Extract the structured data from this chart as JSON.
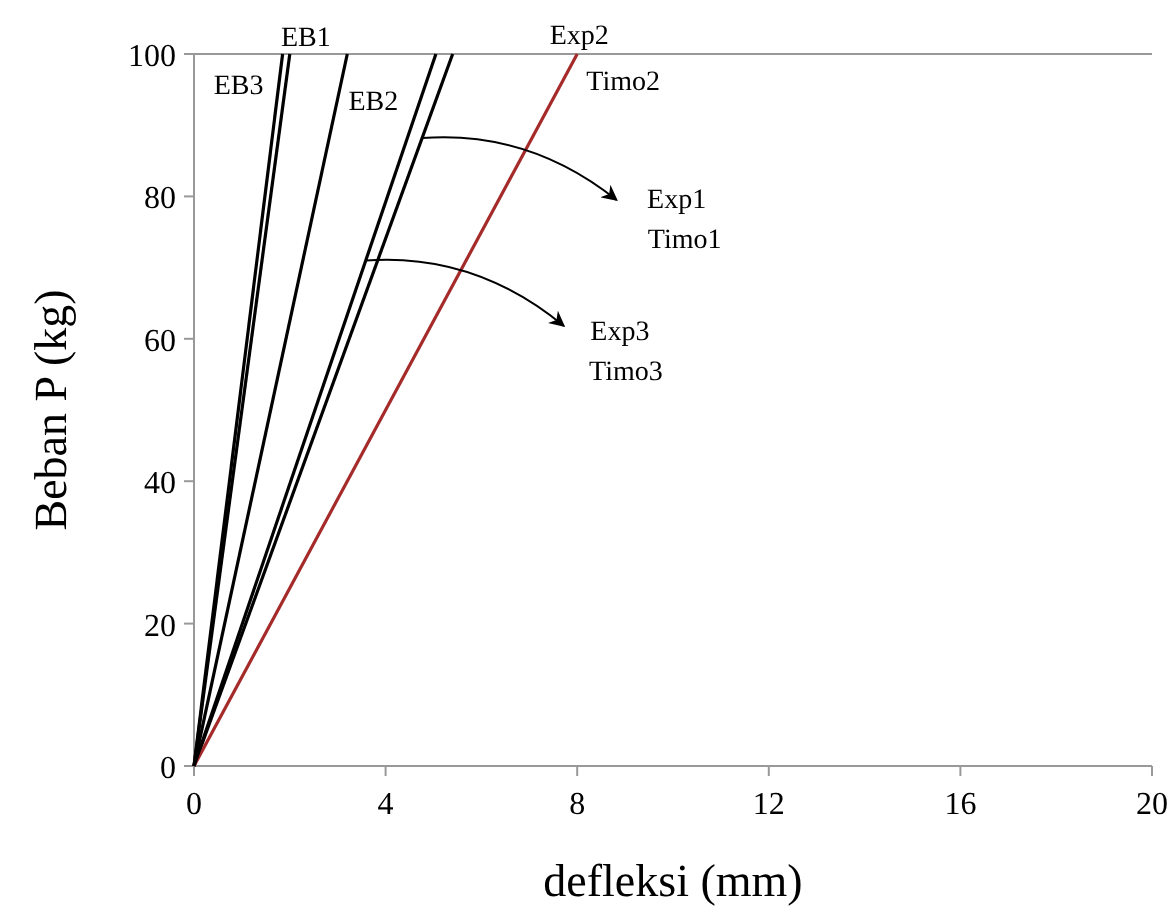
{
  "chart_data": {
    "type": "line",
    "xlabel": "defleksi (mm)",
    "ylabel": "Beban P (kg)",
    "xlim": [
      0,
      20
    ],
    "ylim": [
      0,
      100
    ],
    "xticks": [
      0,
      4,
      8,
      12,
      16,
      20
    ],
    "yticks": [
      0,
      20,
      40,
      60,
      80,
      100
    ],
    "grid": false,
    "marker": "none",
    "line_style": "solid",
    "series": [
      {
        "name": "EB1",
        "color": "#000000",
        "x": [
          0,
          2.0
        ],
        "values": [
          0,
          100
        ]
      },
      {
        "name": "EB2",
        "color": "#000000",
        "x": [
          0,
          3.2
        ],
        "values": [
          0,
          100
        ]
      },
      {
        "name": "EB3",
        "color": "#000000",
        "x": [
          0,
          1.85
        ],
        "values": [
          0,
          100
        ]
      },
      {
        "name": "Exp1 Timo1",
        "color": "#000000",
        "x": [
          0,
          5.4
        ],
        "values": [
          0,
          100
        ]
      },
      {
        "name": "Exp2 Timo2",
        "color": "#a52a2a",
        "x": [
          0,
          8.0
        ],
        "values": [
          0,
          100
        ]
      },
      {
        "name": "Exp3 Timo3",
        "color": "#000000",
        "x": [
          0,
          5.05
        ],
        "values": [
          0,
          100
        ]
      }
    ]
  }
}
